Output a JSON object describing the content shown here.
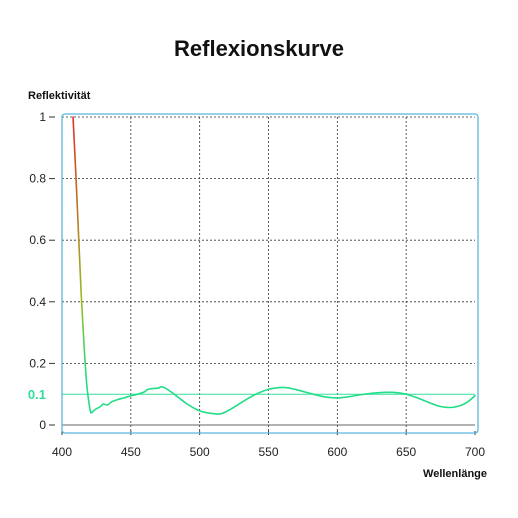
{
  "chart_data": {
    "type": "line",
    "title": "Reflexionskurve",
    "xlabel": "Wellenlänge",
    "ylabel": "Reflektivität",
    "xlim": [
      400,
      700
    ],
    "ylim": [
      0,
      1
    ],
    "x_ticks": [
      "400",
      "450",
      "500",
      "550",
      "600",
      "650",
      "700"
    ],
    "y_ticks": [
      "0",
      "0.2",
      "0.4",
      "0.6",
      "0.8",
      "1"
    ],
    "grid": true,
    "reference_line": {
      "label": "0.1",
      "value": 0.1,
      "color": "#33dd99"
    },
    "colors": {
      "frame": "#5ab8dd",
      "curve_high": "#dd3322",
      "curve_mid": "#99bb22",
      "curve_low": "#22dd88"
    },
    "series": [
      {
        "x": [
          408,
          410,
          412,
          414,
          416,
          418,
          420,
          421,
          422,
          424,
          426,
          428,
          430,
          433,
          436,
          440,
          445,
          450,
          455,
          460,
          462,
          465,
          470,
          472,
          475,
          480,
          485,
          490,
          495,
          500,
          505,
          510,
          515,
          520,
          525,
          530,
          535,
          540,
          545,
          550,
          555,
          560,
          565,
          570,
          575,
          580,
          585,
          590,
          595,
          600,
          605,
          610,
          615,
          620,
          625,
          630,
          635,
          640,
          645,
          650,
          655,
          660,
          665,
          670,
          675,
          680,
          685,
          690,
          695,
          700
        ],
        "y": [
          1.0,
          0.82,
          0.62,
          0.42,
          0.26,
          0.13,
          0.06,
          0.04,
          0.042,
          0.05,
          0.055,
          0.06,
          0.068,
          0.065,
          0.075,
          0.082,
          0.088,
          0.095,
          0.1,
          0.108,
          0.115,
          0.118,
          0.12,
          0.124,
          0.12,
          0.105,
          0.088,
          0.071,
          0.057,
          0.046,
          0.04,
          0.037,
          0.036,
          0.045,
          0.058,
          0.072,
          0.086,
          0.098,
          0.108,
          0.116,
          0.12,
          0.122,
          0.12,
          0.115,
          0.109,
          0.103,
          0.097,
          0.092,
          0.089,
          0.088,
          0.09,
          0.093,
          0.097,
          0.1,
          0.103,
          0.105,
          0.106,
          0.106,
          0.104,
          0.1,
          0.093,
          0.085,
          0.076,
          0.067,
          0.06,
          0.057,
          0.058,
          0.064,
          0.076,
          0.095
        ]
      }
    ]
  }
}
